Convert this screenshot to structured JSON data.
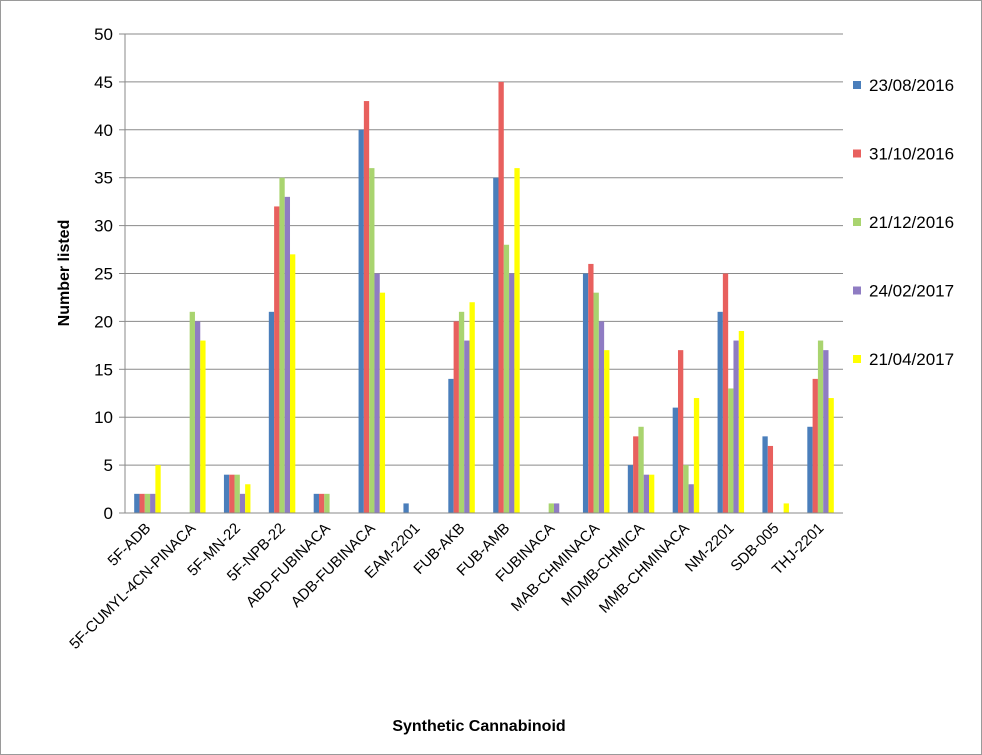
{
  "chart_data": {
    "type": "bar",
    "title": "",
    "xlabel": "Synthetic Cannabinoid",
    "ylabel": "Number listed",
    "ylim": [
      0,
      50
    ],
    "yticks": [
      0,
      5,
      10,
      15,
      20,
      25,
      30,
      35,
      40,
      45,
      50
    ],
    "grid": "horizontal",
    "legend_position": "right",
    "categories": [
      "5F-ADB",
      "5F-CUMYL-4CN-PINACA",
      "5F-MN-22",
      "5F-NPB-22",
      "ABD-FUBINACA",
      "ADB-FUBINACA",
      "EAM-2201",
      "FUB-AKB",
      "FUB-AMB",
      "FUBINACA",
      "MAB-CHMINACA",
      "MDMB-CHMICA",
      "MMB-CHMINACA",
      "NM-2201",
      "SDB-005",
      "THJ-2201"
    ],
    "series": [
      {
        "name": "23/08/2016",
        "color": "#4a7ebb",
        "values": [
          2,
          0,
          4,
          21,
          2,
          40,
          1,
          14,
          35,
          0,
          25,
          5,
          11,
          21,
          8,
          9
        ]
      },
      {
        "name": "31/10/2016",
        "color": "#e8605e",
        "values": [
          2,
          0,
          4,
          32,
          2,
          43,
          0,
          20,
          45,
          0,
          26,
          8,
          17,
          25,
          7,
          14
        ]
      },
      {
        "name": "21/12/2016",
        "color": "#a9d46f",
        "values": [
          2,
          21,
          4,
          35,
          2,
          36,
          0,
          21,
          28,
          1,
          23,
          9,
          5,
          13,
          0,
          18
        ]
      },
      {
        "name": "24/02/2017",
        "color": "#8f7cc3",
        "values": [
          2,
          20,
          2,
          33,
          0,
          25,
          0,
          18,
          25,
          1,
          20,
          4,
          3,
          18,
          0,
          17
        ]
      },
      {
        "name": "21/04/2017",
        "color": "#ffff00",
        "values": [
          5,
          18,
          3,
          27,
          0,
          23,
          0,
          22,
          36,
          0,
          17,
          4,
          12,
          19,
          1,
          12
        ]
      }
    ]
  }
}
